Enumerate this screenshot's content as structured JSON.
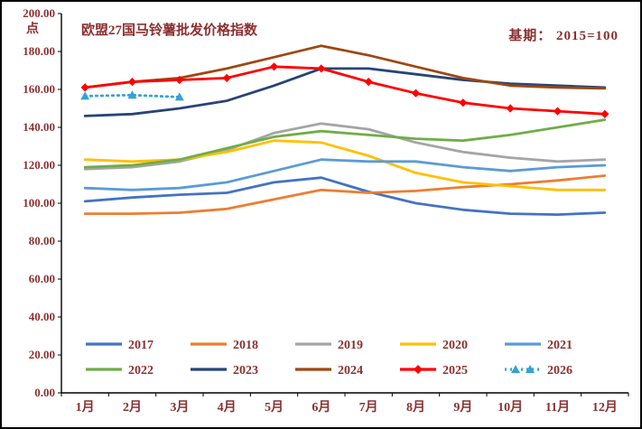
{
  "chart": {
    "title": "欧盟27国马铃薯批发价格指数",
    "base_note": "基期： 2015=100",
    "unit_label": "点",
    "text_color": "#8B3030",
    "axis_color": "#000000"
  },
  "chart_data": {
    "type": "line",
    "title": "欧盟27国马铃薯批发价格指数",
    "subtitle": "基期： 2015=100",
    "ylabel": "点",
    "categories": [
      "1月",
      "2月",
      "3月",
      "4月",
      "5月",
      "6月",
      "7月",
      "8月",
      "9月",
      "10月",
      "11月",
      "12月"
    ],
    "ylim": [
      0,
      200
    ],
    "ytick_step": 20,
    "ytick_labels": [
      "0.00",
      "20.00",
      "40.00",
      "60.00",
      "80.00",
      "100.00",
      "120.00",
      "140.00",
      "160.00",
      "180.00",
      "200.00"
    ],
    "grid": false,
    "legend_position": "bottom-inside-two-rows",
    "series": [
      {
        "name": "2017",
        "color": "#4472C4",
        "values": [
          101,
          103,
          104.5,
          105.5,
          111,
          113.5,
          106,
          100,
          96.5,
          94.5,
          94,
          95
        ]
      },
      {
        "name": "2018",
        "color": "#ED7D31",
        "values": [
          94.5,
          94.5,
          95,
          97,
          102,
          107,
          105.5,
          106.5,
          108.5,
          110,
          112,
          114.5
        ]
      },
      {
        "name": "2019",
        "color": "#A5A5A5",
        "values": [
          118,
          119,
          122,
          128,
          137,
          142,
          139,
          132,
          127,
          124,
          122,
          123
        ]
      },
      {
        "name": "2020",
        "color": "#FFC000",
        "values": [
          123,
          122,
          123,
          127,
          133,
          132,
          125,
          116,
          111,
          109,
          107,
          107
        ]
      },
      {
        "name": "2021",
        "color": "#5B9BD5",
        "values": [
          108,
          107,
          108,
          111,
          117,
          123,
          122,
          122,
          119,
          117,
          119,
          120
        ]
      },
      {
        "name": "2022",
        "color": "#70AD47",
        "values": [
          119,
          120,
          123,
          129,
          135,
          138,
          136,
          134,
          133,
          136,
          140,
          144
        ]
      },
      {
        "name": "2023",
        "color": "#264478",
        "values": [
          146,
          147,
          150,
          154,
          162,
          171,
          171,
          168,
          165,
          163,
          162,
          161
        ]
      },
      {
        "name": "2024",
        "color": "#9E480E",
        "values": [
          161,
          164,
          166,
          171,
          177,
          183,
          178,
          172,
          166,
          162,
          161,
          160.5
        ]
      },
      {
        "name": "2025",
        "color": "#FF0000",
        "marker": "diamond",
        "values": [
          161,
          164,
          165,
          166,
          172,
          171,
          164,
          158,
          153,
          150,
          148.5,
          147
        ]
      },
      {
        "name": "2026",
        "color": "#33A2D9",
        "marker": "triangle",
        "dashed": true,
        "values": [
          156.5,
          157,
          156
        ]
      }
    ]
  }
}
